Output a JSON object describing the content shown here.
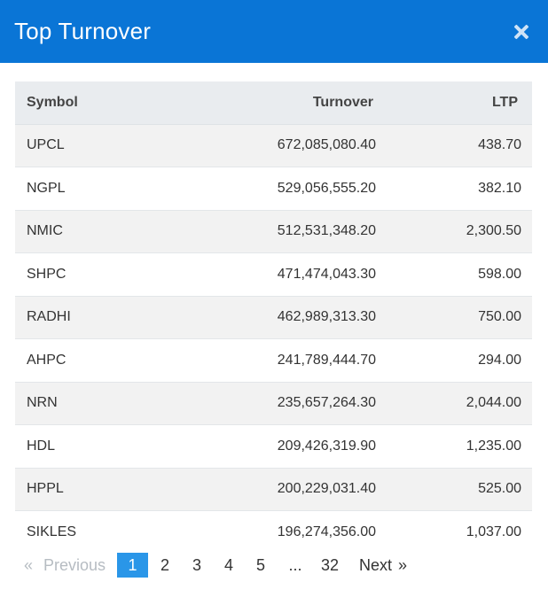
{
  "header": {
    "title": "Top Turnover"
  },
  "table": {
    "columns": [
      "Symbol",
      "Turnover",
      "LTP"
    ],
    "rows": [
      {
        "symbol": "UPCL",
        "turnover": "672,085,080.40",
        "ltp": "438.70"
      },
      {
        "symbol": "NGPL",
        "turnover": "529,056,555.20",
        "ltp": "382.10"
      },
      {
        "symbol": "NMIC",
        "turnover": "512,531,348.20",
        "ltp": "2,300.50"
      },
      {
        "symbol": "SHPC",
        "turnover": "471,474,043.30",
        "ltp": "598.00"
      },
      {
        "symbol": "RADHI",
        "turnover": "462,989,313.30",
        "ltp": "750.00"
      },
      {
        "symbol": "AHPC",
        "turnover": "241,789,444.70",
        "ltp": "294.00"
      },
      {
        "symbol": "NRN",
        "turnover": "235,657,264.30",
        "ltp": "2,044.00"
      },
      {
        "symbol": "HDL",
        "turnover": "209,426,319.90",
        "ltp": "1,235.00"
      },
      {
        "symbol": "HPPL",
        "turnover": "200,229,031.40",
        "ltp": "525.00"
      },
      {
        "symbol": "SIKLES",
        "turnover": "196,274,356.00",
        "ltp": "1,037.00"
      }
    ]
  },
  "pagination": {
    "prev_arrow": "«",
    "prev_label": "Previous",
    "pages": [
      "1",
      "2",
      "3",
      "4",
      "5"
    ],
    "active_page": "1",
    "ellipsis": "...",
    "last_page": "32",
    "next_label": "Next",
    "next_arrow": "»"
  },
  "colors": {
    "header_bg": "#0a75d6",
    "active_page_bg": "#2a96e8",
    "table_header_bg": "#e9ecef",
    "striped_row_bg": "#f2f2f2"
  },
  "icons": {
    "close": "close-icon"
  }
}
